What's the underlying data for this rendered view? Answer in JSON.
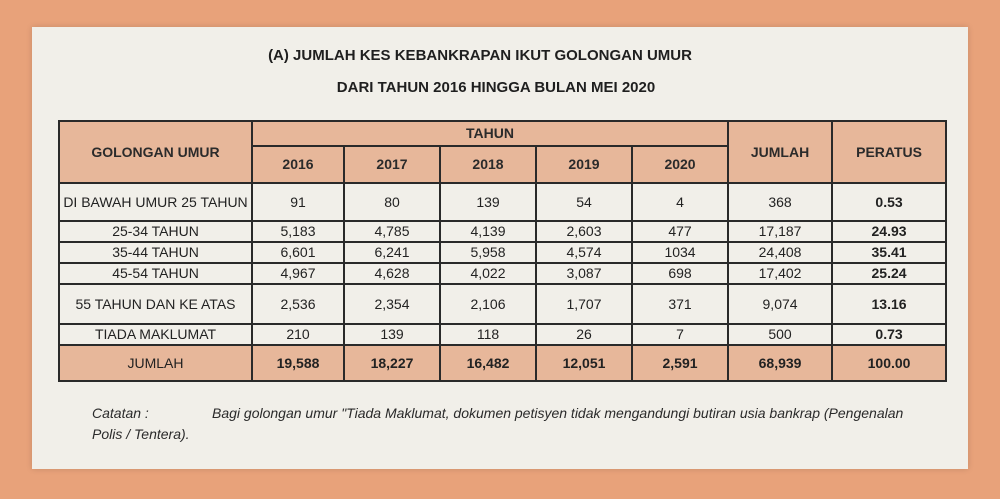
{
  "title_line1": "(A) JUMLAH KES KEBANKRAPAN IKUT GOLONGAN UMUR",
  "title_line2": "DARI TAHUN 2016 HINGGA BULAN MEI 2020",
  "headers": {
    "group": "GOLONGAN UMUR",
    "tahun": "TAHUN",
    "years": [
      "2016",
      "2017",
      "2018",
      "2019",
      "2020"
    ],
    "jumlah": "JUMLAH",
    "peratus": "PERATUS"
  },
  "rows": [
    {
      "label": "DI BAWAH UMUR 25 TAHUN",
      "values": [
        "91",
        "80",
        "139",
        "54",
        "4"
      ],
      "jumlah": "368",
      "peratus": "0.53"
    },
    {
      "label": "25-34 TAHUN",
      "values": [
        "5,183",
        "4,785",
        "4,139",
        "2,603",
        "477"
      ],
      "jumlah": "17,187",
      "peratus": "24.93"
    },
    {
      "label": "35-44 TAHUN",
      "values": [
        "6,601",
        "6,241",
        "5,958",
        "4,574",
        "1034"
      ],
      "jumlah": "24,408",
      "peratus": "35.41"
    },
    {
      "label": "45-54 TAHUN",
      "values": [
        "4,967",
        "4,628",
        "4,022",
        "3,087",
        "698"
      ],
      "jumlah": "17,402",
      "peratus": "25.24"
    },
    {
      "label": "55 TAHUN DAN KE ATAS",
      "values": [
        "2,536",
        "2,354",
        "2,106",
        "1,707",
        "371"
      ],
      "jumlah": "9,074",
      "peratus": "13.16"
    },
    {
      "label": "TIADA MAKLUMAT",
      "values": [
        "210",
        "139",
        "118",
        "26",
        "7"
      ],
      "jumlah": "500",
      "peratus": "0.73"
    }
  ],
  "total": {
    "label": "JUMLAH",
    "values": [
      "19,588",
      "18,227",
      "16,482",
      "12,051",
      "2,591"
    ],
    "jumlah": "68,939",
    "peratus": "100.00"
  },
  "catatan_label": "Catatan :",
  "catatan_text": "Bagi golongan umur \"Tiada Maklumat, dokumen petisyen tidak mengandungi butiran usia bankrap (Pengenalan Polis / Tentera)."
}
